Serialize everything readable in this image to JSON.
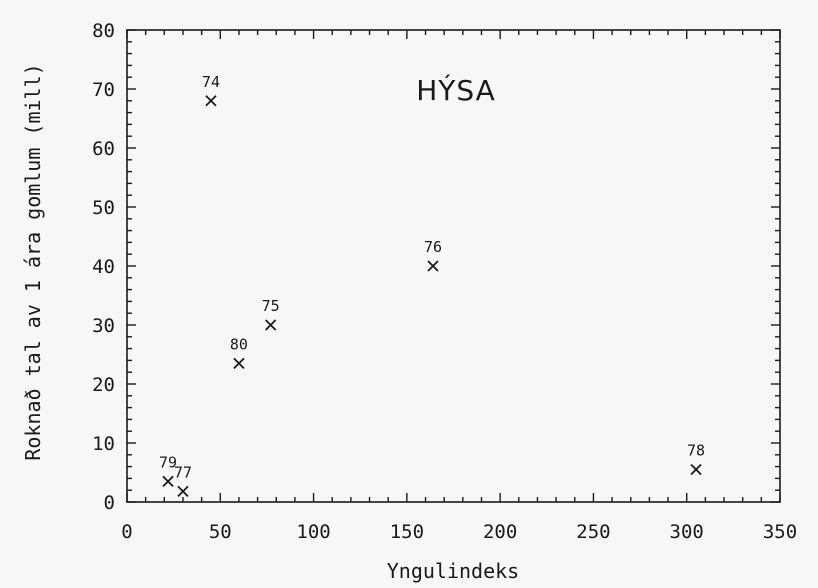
{
  "chart_data": {
    "type": "scatter",
    "title": "HÝSA",
    "xlabel": "Yngulindeks",
    "ylabel": "Roknað tal av 1 ára gomlum (mill)",
    "xlim": [
      0,
      350
    ],
    "ylim": [
      0,
      80
    ],
    "xticks": [
      0,
      50,
      100,
      150,
      200,
      250,
      300,
      350
    ],
    "yticks": [
      0,
      10,
      20,
      30,
      40,
      50,
      60,
      70,
      80
    ],
    "grid": false,
    "legend": "none",
    "points": [
      {
        "x": 45,
        "y": 68,
        "label": "74"
      },
      {
        "x": 164,
        "y": 40,
        "label": "76"
      },
      {
        "x": 77,
        "y": 30,
        "label": "75"
      },
      {
        "x": 60,
        "y": 23.5,
        "label": "80"
      },
      {
        "x": 22,
        "y": 3.5,
        "label": "79"
      },
      {
        "x": 30,
        "y": 1.8,
        "label": "77"
      },
      {
        "x": 305,
        "y": 5.5,
        "label": "78"
      }
    ]
  }
}
